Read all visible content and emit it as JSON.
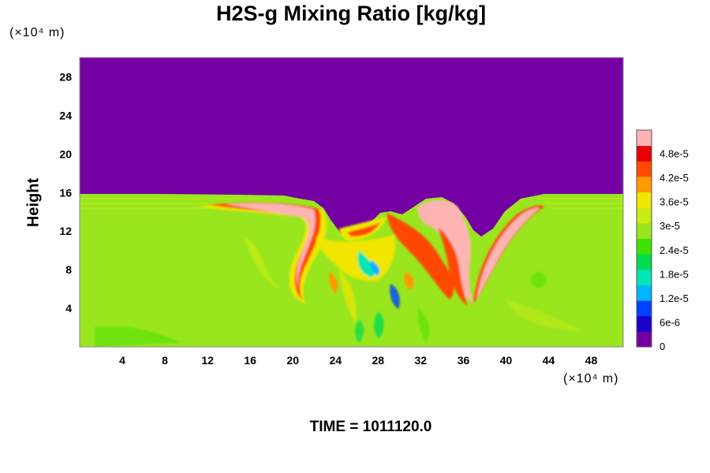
{
  "chart_data": {
    "type": "heatmap",
    "title": "H2S-g Mixing Ratio [kg/kg]",
    "ylabel": "Height",
    "xlabel": "",
    "x_unit": "(×10⁴ m)",
    "y_unit": "(×10⁴ m)",
    "x_ticks": [
      4,
      8,
      12,
      16,
      20,
      24,
      28,
      32,
      36,
      40,
      44,
      48
    ],
    "y_ticks": [
      4,
      8,
      12,
      16,
      20,
      24,
      28
    ],
    "xlim": [
      0,
      51
    ],
    "ylim": [
      0,
      30
    ],
    "colorbar": {
      "ticks": [
        "0",
        "6e-6",
        "1.2e-5",
        "1.8e-5",
        "2.4e-5",
        "3e-5",
        "3.6e-5",
        "4.2e-5",
        "4.8e-5"
      ],
      "range": [
        0,
        5.4e-05
      ],
      "colors": [
        "#7400a4",
        "#1a00c8",
        "#0040ff",
        "#00b4ff",
        "#00e6b4",
        "#00dc50",
        "#40e000",
        "#9ae61e",
        "#c8ec14",
        "#f0e600",
        "#ff9a00",
        "#ff4a00",
        "#e80000",
        "#ffb4b4"
      ]
    },
    "field": {
      "upper_layer_value": 0,
      "lower_layer_value": 3.1e-05,
      "layer_top_height": 15.5,
      "dominant_color": "#9ae61e"
    }
  },
  "footer": {
    "time_label": "TIME = 1011120.0"
  }
}
